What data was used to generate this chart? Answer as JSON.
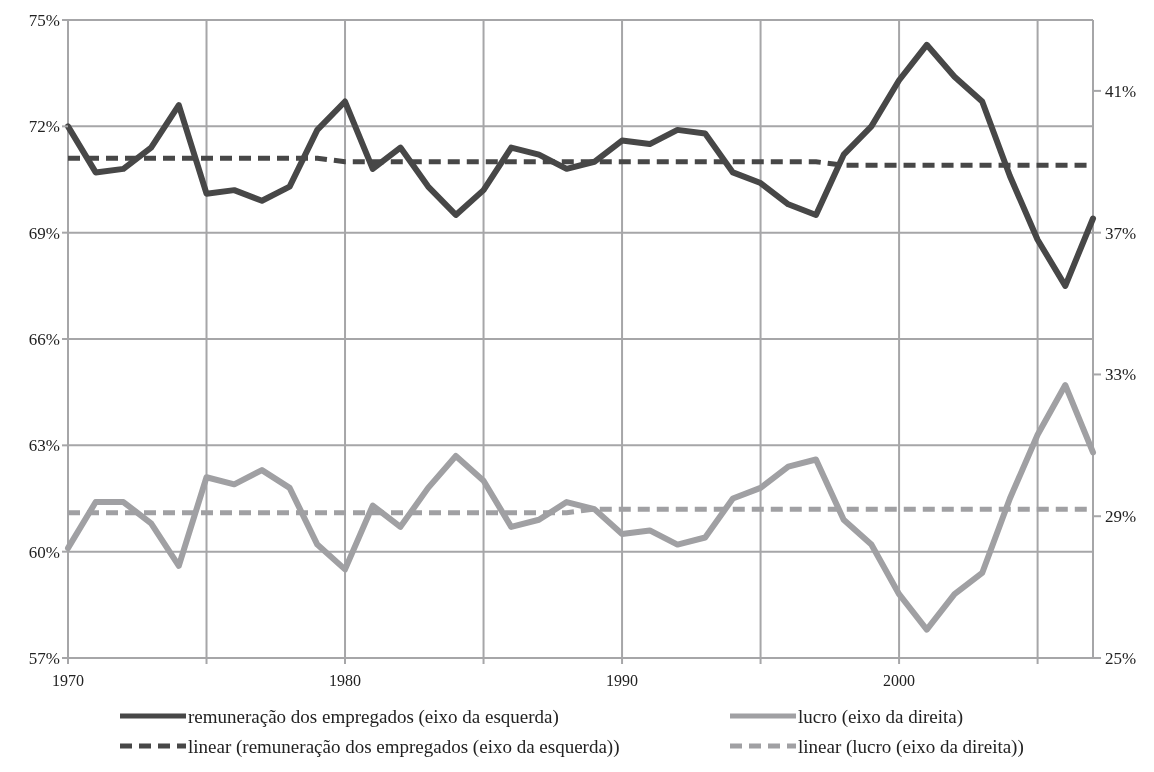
{
  "chart_data": {
    "type": "line",
    "x": [
      1970,
      1971,
      1972,
      1973,
      1974,
      1975,
      1976,
      1977,
      1978,
      1979,
      1980,
      1981,
      1982,
      1983,
      1984,
      1985,
      1986,
      1987,
      1988,
      1989,
      1990,
      1991,
      1992,
      1993,
      1994,
      1995,
      1996,
      1997,
      1998,
      1999,
      2000,
      2001,
      2002,
      2003,
      2004,
      2005,
      2006,
      2007
    ],
    "series": [
      {
        "name": "remuneração dos empregados (eixo da esquerda)",
        "color": "#474747",
        "line_style": "solid",
        "values": [
          72.0,
          70.7,
          70.8,
          71.4,
          72.6,
          70.1,
          70.2,
          69.9,
          70.3,
          71.9,
          72.7,
          70.8,
          71.4,
          70.3,
          69.5,
          70.2,
          71.4,
          71.2,
          70.8,
          71.0,
          71.6,
          71.5,
          71.9,
          71.8,
          70.7,
          70.4,
          69.8,
          69.5,
          71.2,
          72.0,
          73.3,
          74.3,
          73.4,
          72.7,
          70.6,
          68.8,
          67.5,
          69.4
        ]
      },
      {
        "name": "lucro (eixo da direita)",
        "color": "#a0a0a3",
        "axis": "y2",
        "line_style": "solid",
        "values": [
          28.1,
          29.4,
          29.4,
          28.8,
          27.6,
          30.1,
          29.9,
          30.3,
          29.8,
          28.2,
          27.5,
          29.3,
          28.7,
          29.8,
          30.7,
          30.0,
          28.7,
          28.9,
          29.4,
          29.2,
          28.5,
          28.6,
          28.2,
          28.4,
          29.5,
          29.8,
          30.4,
          30.6,
          28.9,
          28.2,
          26.8,
          25.8,
          26.8,
          27.4,
          29.5,
          31.3,
          32.7,
          30.8
        ]
      },
      {
        "name": "linear (remuneração dos empregados (eixo da esquerda))",
        "color": "#474747",
        "line_style": "dashed",
        "values": [
          71.1,
          71.1,
          71.1,
          71.1,
          71.1,
          71.1,
          71.1,
          71.1,
          71.1,
          71.1,
          71.0,
          71.0,
          71.0,
          71.0,
          71.0,
          71.0,
          71.0,
          71.0,
          71.0,
          71.0,
          71.0,
          71.0,
          71.0,
          71.0,
          71.0,
          71.0,
          71.0,
          71.0,
          70.9,
          70.9,
          70.9,
          70.9,
          70.9,
          70.9,
          70.9,
          70.9,
          70.9,
          70.9
        ]
      },
      {
        "name": "linear (lucro (eixo da direita))",
        "color": "#a0a0a3",
        "axis": "y2",
        "line_style": "dashed",
        "values": [
          29.1,
          29.1,
          29.1,
          29.1,
          29.1,
          29.1,
          29.1,
          29.1,
          29.1,
          29.1,
          29.1,
          29.1,
          29.1,
          29.1,
          29.1,
          29.1,
          29.1,
          29.1,
          29.1,
          29.2,
          29.2,
          29.2,
          29.2,
          29.2,
          29.2,
          29.2,
          29.2,
          29.2,
          29.2,
          29.2,
          29.2,
          29.2,
          29.2,
          29.2,
          29.2,
          29.2,
          29.2,
          29.2
        ]
      }
    ],
    "xlim": [
      1970,
      2007
    ],
    "xticks": [
      1970,
      {
        "value": 1975,
        "label": null
      },
      1980,
      {
        "value": 1985,
        "label": null
      },
      1990,
      {
        "value": 1995,
        "label": null
      },
      2000,
      {
        "value": 2005,
        "label": null
      }
    ],
    "ylim": [
      57,
      75
    ],
    "yticks": [
      {
        "value": 57,
        "label": "57%"
      },
      {
        "value": 60,
        "label": "60%"
      },
      {
        "value": 63,
        "label": "63%"
      },
      {
        "value": 66,
        "label": "66%"
      },
      {
        "value": 69,
        "label": "69%"
      },
      {
        "value": 72,
        "label": "72%"
      },
      {
        "value": 75,
        "label": "75%"
      }
    ],
    "y2lim": [
      25,
      43
    ],
    "y2ticks": [
      {
        "value": 25,
        "label": "25%"
      },
      {
        "value": 29,
        "label": "29%"
      },
      {
        "value": 33,
        "label": "33%"
      },
      {
        "value": 37,
        "label": "37%"
      },
      {
        "value": 41,
        "label": "41%"
      }
    ],
    "grid": true,
    "legend": "bottom",
    "marker": "none"
  }
}
